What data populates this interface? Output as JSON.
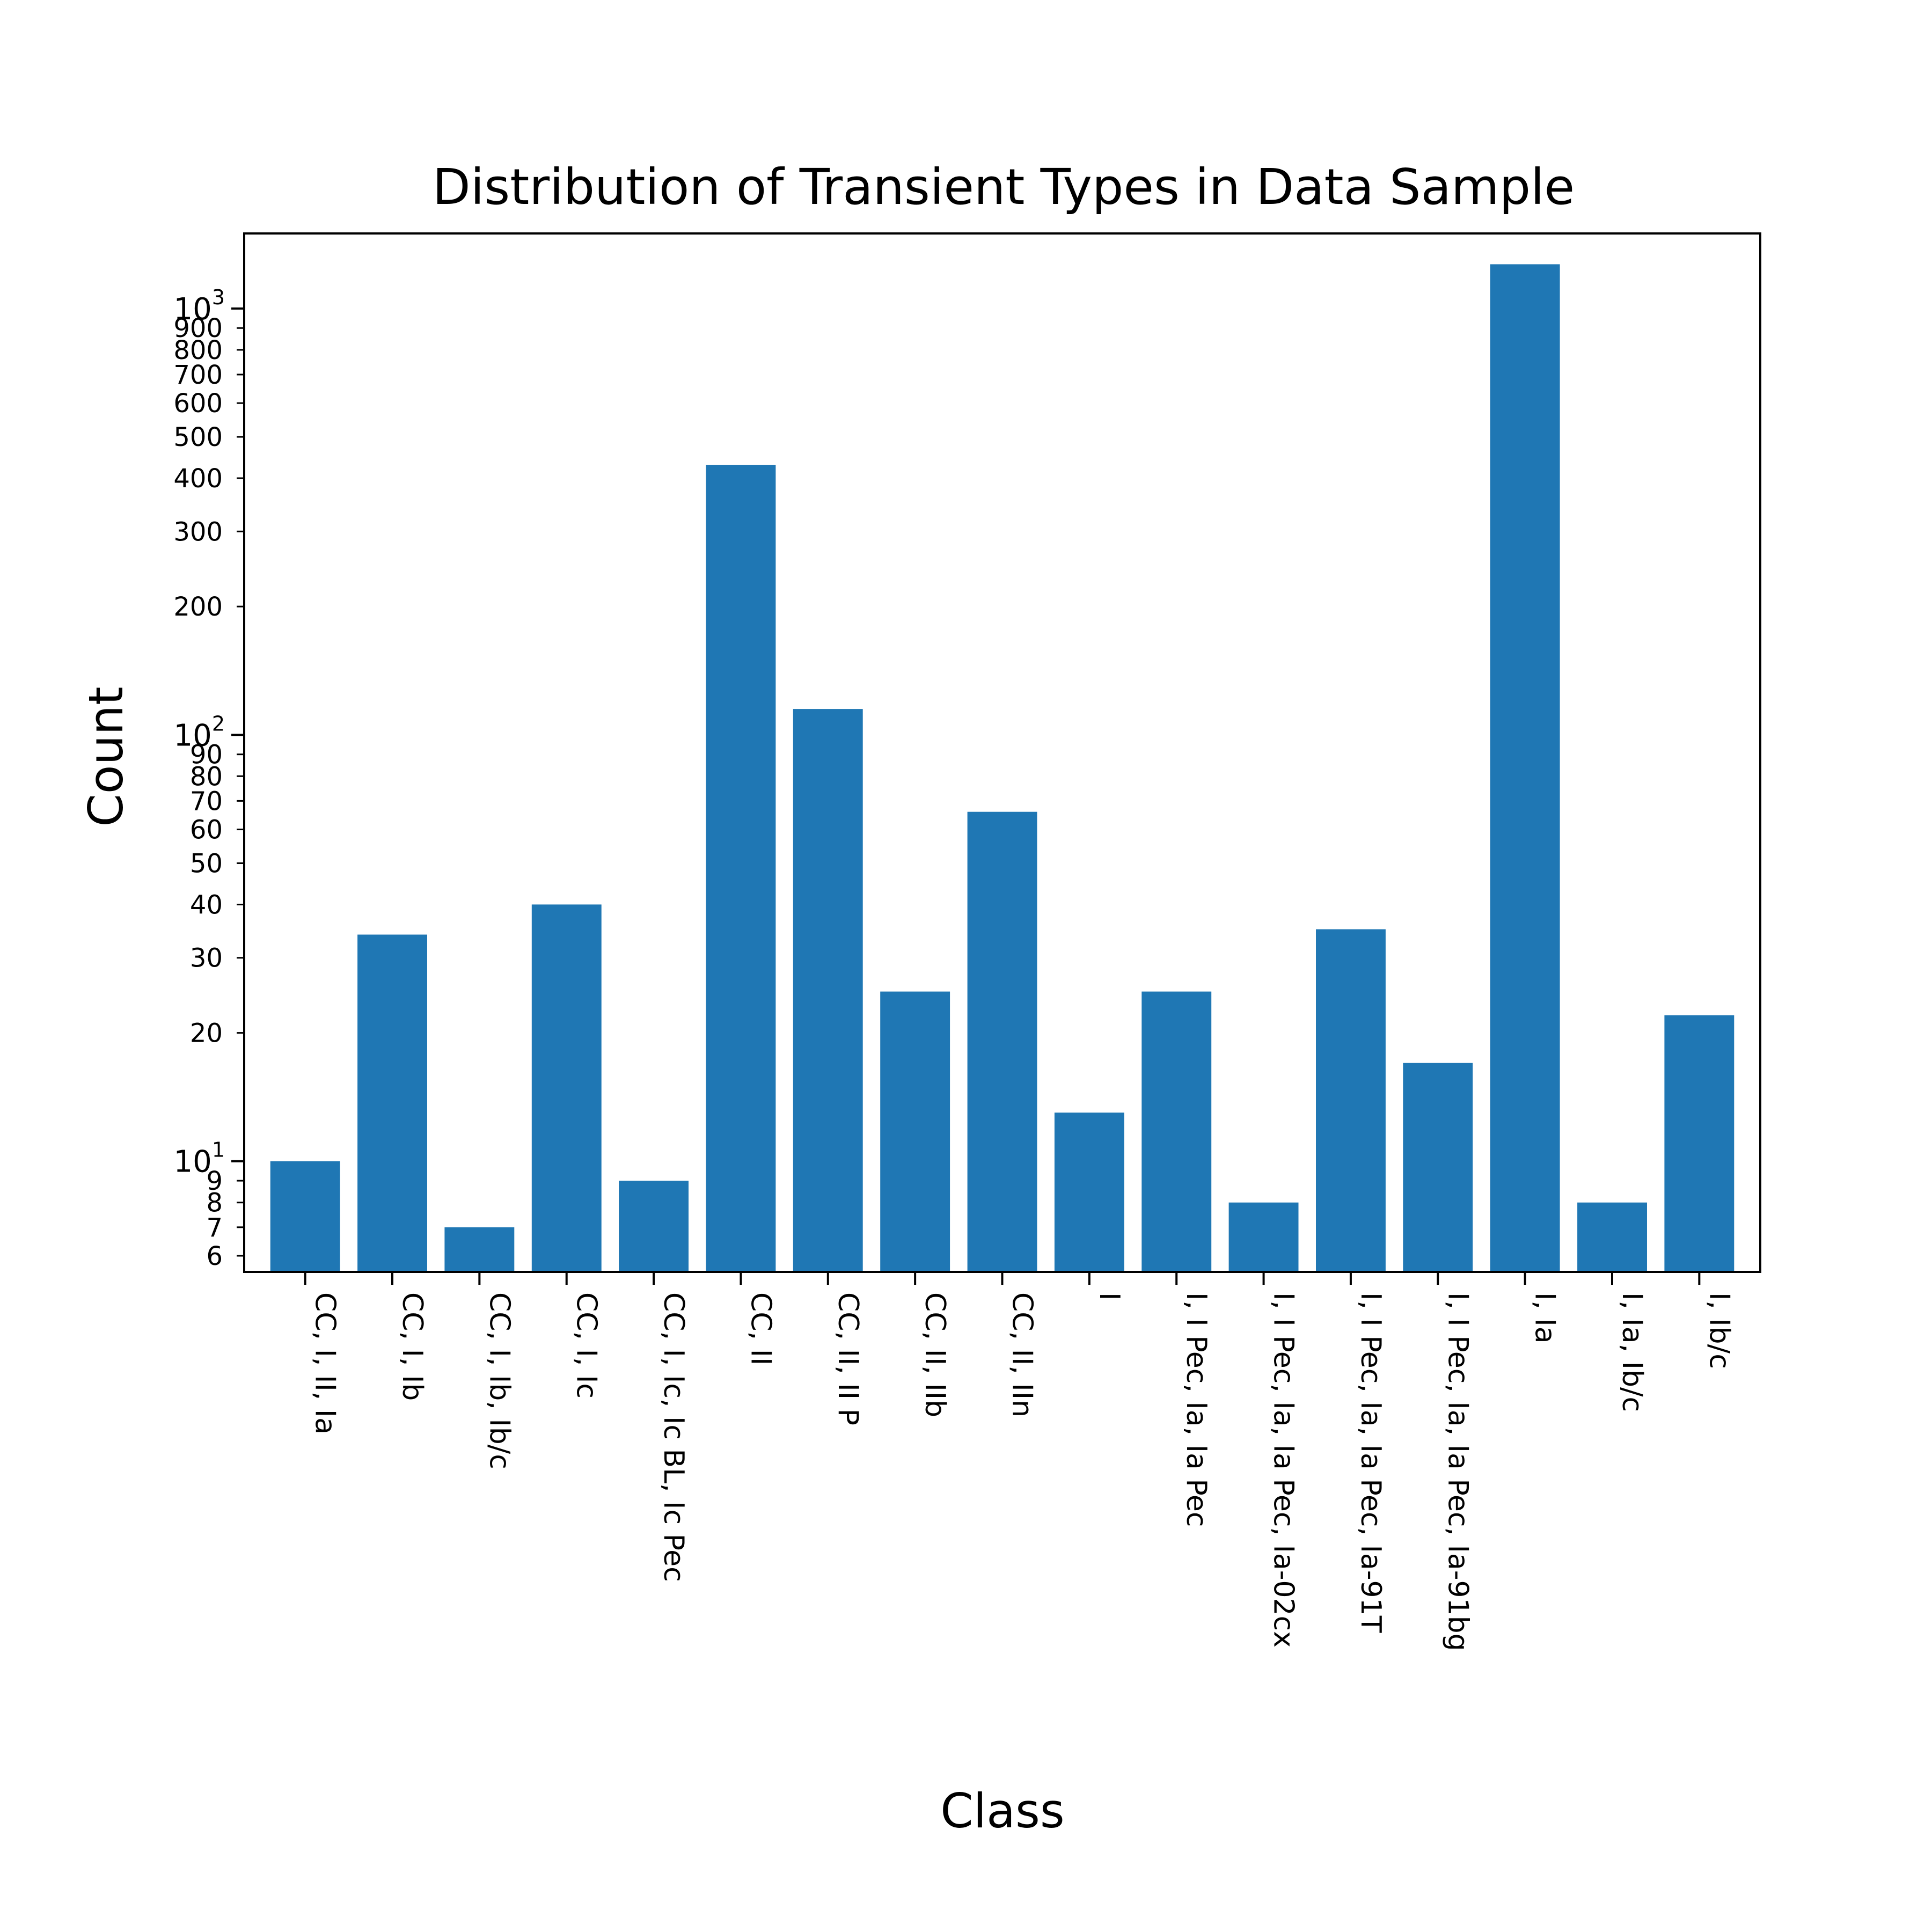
{
  "chart_data": {
    "type": "bar",
    "title": "Distribution of Transient Types in Data Sample",
    "xlabel": "Class",
    "ylabel": "Count",
    "yscale": "log",
    "ylim": [
      5.5,
      1500
    ],
    "grid": false,
    "color": "#1f77b4",
    "categories": [
      "CC, I, II, Ia",
      "CC, I, Ib",
      "CC, I, Ib, Ib/c",
      "CC, I, Ic",
      "CC, I, Ic, Ic BL, Ic Pec",
      "CC, II",
      "CC, II, II P",
      "CC, II, IIb",
      "CC, II, IIn",
      "I",
      "I, I Pec, Ia, Ia Pec",
      "I, I Pec, Ia, Ia Pec, Ia-02cx",
      "I, I Pec, Ia, Ia Pec, Ia-91T",
      "I, I Pec, Ia, Ia Pec, Ia-91bg",
      "I, Ia",
      "I, Ia, Ib/c",
      "I, Ib/c"
    ],
    "values": [
      10,
      34,
      7,
      40,
      9,
      430,
      115,
      25,
      66,
      13,
      25,
      8,
      35,
      17,
      1270,
      8,
      22
    ],
    "yticks_major": [
      {
        "value": 10,
        "base": "10",
        "exp": "1"
      },
      {
        "value": 100,
        "base": "10",
        "exp": "2"
      },
      {
        "value": 1000,
        "base": "10",
        "exp": "3"
      }
    ],
    "yticks_minor": [
      {
        "value": 6,
        "label": "6"
      },
      {
        "value": 7,
        "label": "7"
      },
      {
        "value": 8,
        "label": "8"
      },
      {
        "value": 9,
        "label": "9"
      },
      {
        "value": 20,
        "label": "20"
      },
      {
        "value": 30,
        "label": "30"
      },
      {
        "value": 40,
        "label": "40"
      },
      {
        "value": 50,
        "label": "50"
      },
      {
        "value": 60,
        "label": "60"
      },
      {
        "value": 70,
        "label": "70"
      },
      {
        "value": 80,
        "label": "80"
      },
      {
        "value": 90,
        "label": "90"
      },
      {
        "value": 200,
        "label": "200"
      },
      {
        "value": 300,
        "label": "300"
      },
      {
        "value": 400,
        "label": "400"
      },
      {
        "value": 500,
        "label": "500"
      },
      {
        "value": 600,
        "label": "600"
      },
      {
        "value": 700,
        "label": "700"
      },
      {
        "value": 800,
        "label": "800"
      },
      {
        "value": 900,
        "label": "900"
      }
    ]
  }
}
